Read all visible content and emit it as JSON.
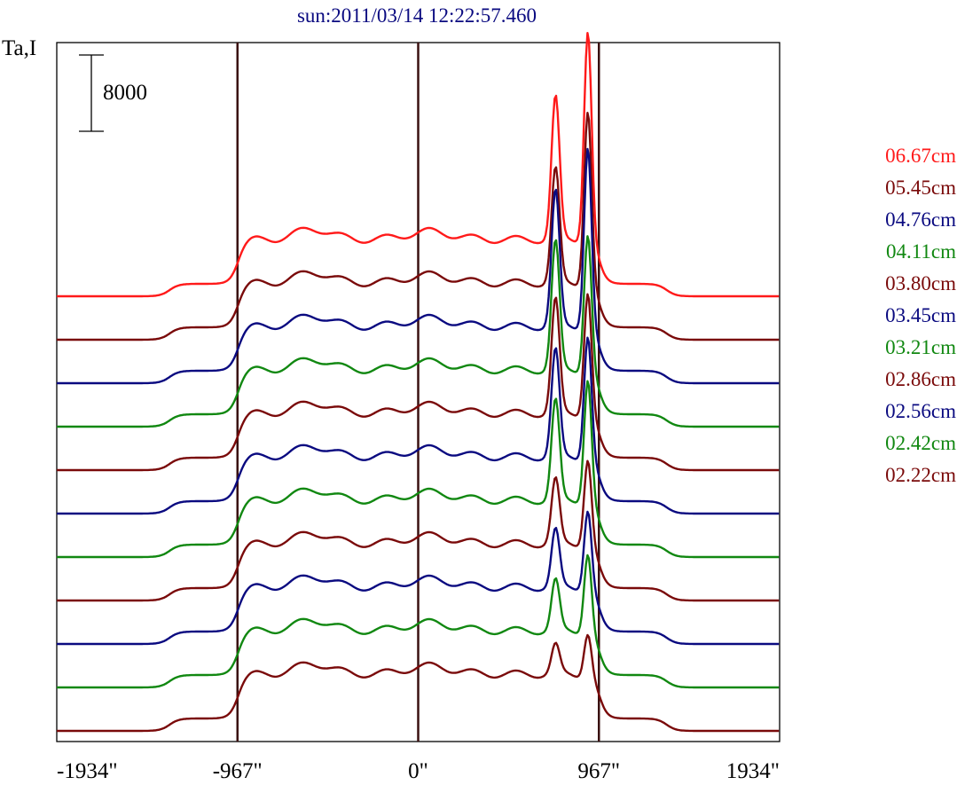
{
  "chart_data": {
    "type": "line",
    "title": "sun:2011/03/14 12:22:57.460",
    "ylabel": "Ta,I",
    "scale_bar_label": "8000",
    "scale_bar_value": 8000,
    "x_ticks": [
      "-1934\"",
      "-967\"",
      "0\"",
      "967\"",
      "1934\""
    ],
    "x_tick_values": [
      -1934,
      -967,
      0,
      967,
      1934
    ],
    "xlim": [
      -1934,
      1934
    ],
    "vertical_markers": [
      -967,
      0,
      967
    ],
    "grid": false,
    "legend_position": "right",
    "colors": {
      "red": "#ff1a1a",
      "maroon": "#7a0a0a",
      "navy": "#0a0a80",
      "green": "#118811",
      "frame": "#000000",
      "marker": "#3a1010"
    },
    "series": [
      {
        "name": "06.67cm",
        "color": "#ff1a1a",
        "peak1": 1.0,
        "peak2": 1.45
      },
      {
        "name": "05.45cm",
        "color": "#7a0a0a",
        "peak1": 0.8,
        "peak2": 1.2
      },
      {
        "name": "04.76cm",
        "color": "#0a0a80",
        "peak1": 0.95,
        "peak2": 1.25
      },
      {
        "name": "04.11cm",
        "color": "#118811",
        "peak1": 0.9,
        "peak2": 0.95
      },
      {
        "name": "03.80cm",
        "color": "#7a0a0a",
        "peak1": 0.8,
        "peak2": 0.85
      },
      {
        "name": "03.45cm",
        "color": "#0a0a80",
        "peak1": 0.75,
        "peak2": 0.85
      },
      {
        "name": "03.21cm",
        "color": "#118811",
        "peak1": 0.7,
        "peak2": 0.85
      },
      {
        "name": "02.86cm",
        "color": "#7a0a0a",
        "peak1": 0.45,
        "peak2": 0.6
      },
      {
        "name": "02.56cm",
        "color": "#0a0a80",
        "peak1": 0.4,
        "peak2": 0.55
      },
      {
        "name": "02.42cm",
        "color": "#118811",
        "peak1": 0.35,
        "peak2": 0.55
      },
      {
        "name": "02.22cm",
        "color": "#7a0a0a",
        "peak1": 0.2,
        "peak2": 0.3
      }
    ]
  }
}
